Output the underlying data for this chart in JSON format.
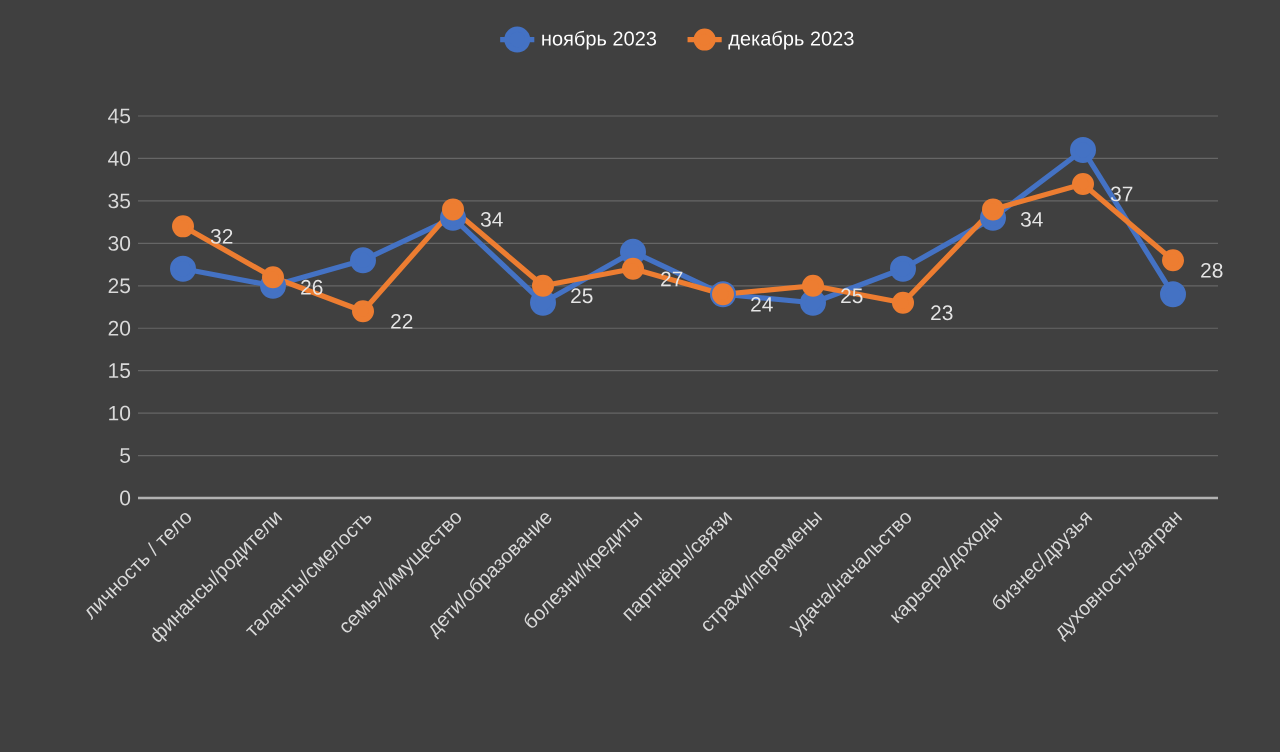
{
  "chart_data": {
    "type": "line",
    "categories": [
      "личность / тело",
      "финансы/родители",
      "таланты/смелость",
      "семья/имущество",
      "дети/образование",
      "болезни/кредиты",
      "партнёры/связи",
      "страхи/перемены",
      "удача/начальство",
      "карьера/доходы",
      "бизнес/друзья",
      "духовность/загран"
    ],
    "series": [
      {
        "name": "ноябрь 2023",
        "color": "#4472c4",
        "values": [
          27,
          25,
          28,
          33,
          23,
          29,
          24,
          23,
          27,
          33,
          41,
          24
        ]
      },
      {
        "name": "декабрь 2023",
        "color": "#ed7d31",
        "values": [
          32,
          26,
          22,
          34,
          25,
          27,
          24,
          25,
          23,
          34,
          37,
          28
        ],
        "value_labels": [
          "32",
          "26",
          "22",
          "34",
          "25",
          "27",
          "24",
          "25",
          "23",
          "34",
          "37",
          "28"
        ]
      }
    ],
    "ylim": [
      0,
      45
    ],
    "yticks": [
      0,
      5,
      10,
      15,
      20,
      25,
      30,
      35,
      40,
      45
    ],
    "grid": "y",
    "legend": "top",
    "marker": "circle",
    "line_style": "solid"
  }
}
